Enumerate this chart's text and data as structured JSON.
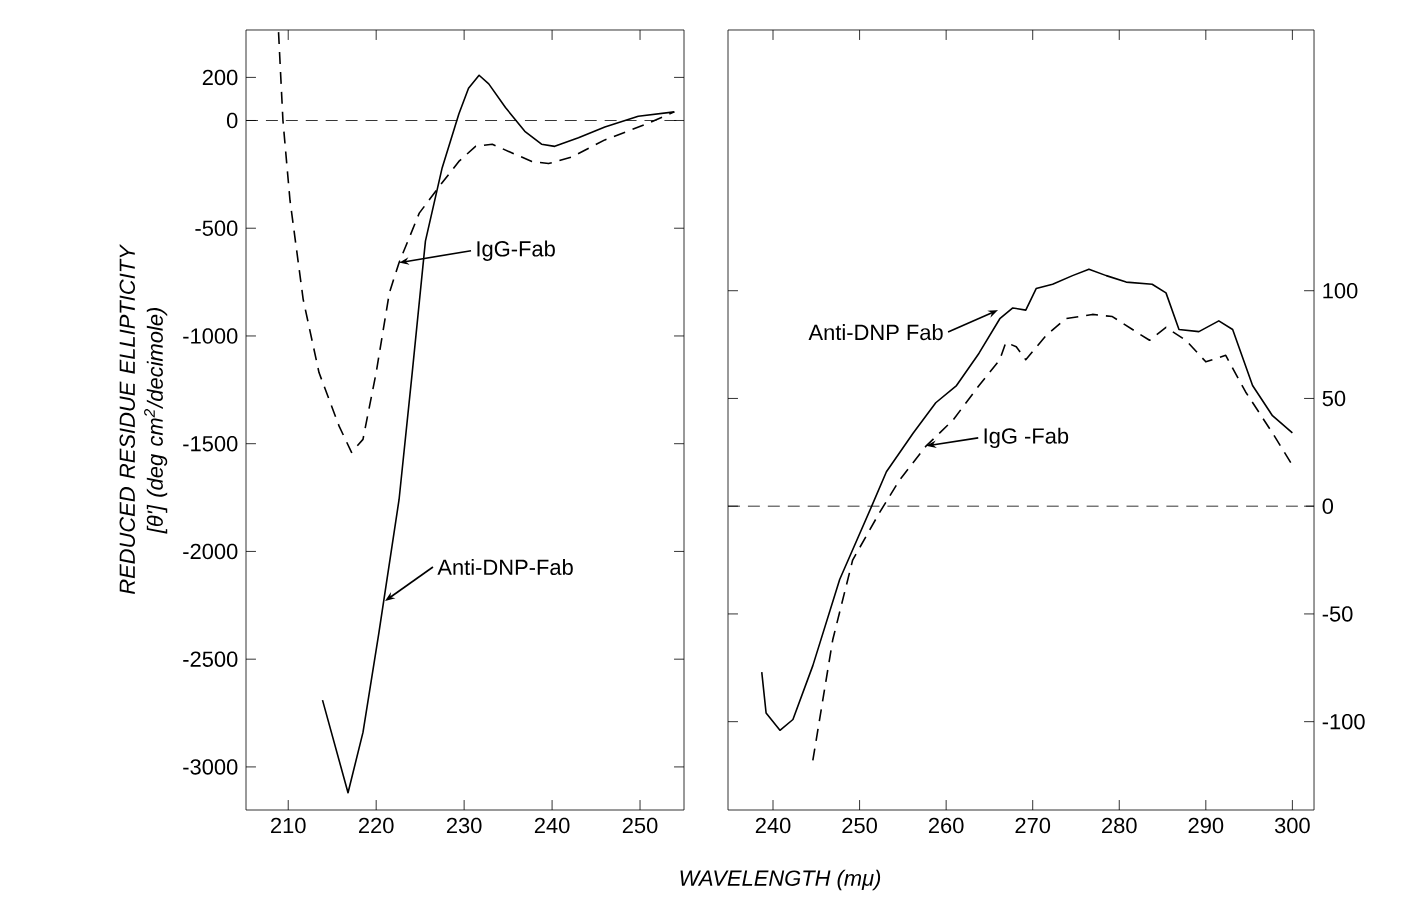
{
  "chart_data": [
    {
      "type": "line",
      "xlabel": "WAVELENGTH (mμ)",
      "ylabel": "REDUCED RESIDUE ELLIPTICITY [θ'] (deg cm$^{2}$/decimole)",
      "xlim": [
        205.2,
        255
      ],
      "ylim": [
        -3200,
        420
      ],
      "xticks": [
        210,
        220,
        230,
        240,
        250
      ],
      "yticks": [
        -3000,
        -2500,
        -2000,
        -1500,
        -1000,
        -500,
        0,
        200
      ],
      "grid": false,
      "marker": "none",
      "ref_lines": [
        {
          "axis": "y",
          "value": 0,
          "line_style": "dashed",
          "color": "#000000"
        }
      ],
      "annotations": [
        {
          "text": "IgG-Fab",
          "x": 222.6,
          "y": -660
        },
        {
          "text": "Anti-DNP-Fab",
          "x": 221,
          "y": -2230
        }
      ],
      "series": [
        {
          "color": "#000000",
          "line_style": "solid",
          "x": [
            213.9,
            216.8,
            218.5,
            220.3,
            222.6,
            224.1,
            225.6,
            227.5,
            229.4,
            230.5,
            231.7,
            232.8,
            234.7,
            236.9,
            238.8,
            240.3,
            243,
            246,
            249.8,
            253.9
          ],
          "values": [
            -2690,
            -3120,
            -2840,
            -2380,
            -1760,
            -1170,
            -560,
            -220,
            30,
            150,
            210,
            170,
            60,
            -50,
            -110,
            -120,
            -80,
            -30,
            20,
            40
          ]
        },
        {
          "color": "#000000",
          "line_style": "dashed",
          "x": [
            208.9,
            209.4,
            210.2,
            211.7,
            213.5,
            215.8,
            217.2,
            218.5,
            220,
            221.5,
            222.6,
            224.9,
            227.1,
            229.4,
            231.3,
            233.2,
            235.4,
            237.7,
            239.6,
            242.2,
            246,
            250.5,
            253.9
          ],
          "values": [
            410,
            0,
            -370,
            -830,
            -1170,
            -1420,
            -1540,
            -1480,
            -1170,
            -800,
            -660,
            -430,
            -310,
            -190,
            -120,
            -110,
            -150,
            -190,
            -200,
            -170,
            -90,
            -20,
            40
          ]
        }
      ]
    },
    {
      "type": "line",
      "xlim": [
        234.8,
        302.5
      ],
      "ylim": [
        -141,
        221
      ],
      "xticks": [
        240,
        250,
        260,
        270,
        280,
        290,
        300
      ],
      "yticks": [
        -100,
        -50,
        0,
        50,
        100
      ],
      "grid": false,
      "marker": "none",
      "ref_lines": [
        {
          "axis": "y",
          "value": 0,
          "line_style": "dashed",
          "color": "#000000"
        }
      ],
      "annotations": [
        {
          "text": "Anti-DNP Fab",
          "x": 266,
          "y": 91
        },
        {
          "text": "IgG -Fab",
          "x": 257.7,
          "y": 28
        }
      ],
      "series": [
        {
          "color": "#000000",
          "line_style": "solid",
          "x": [
            238.7,
            239.2,
            240.8,
            242.3,
            244.6,
            247.7,
            251.4,
            253.1,
            256.2,
            258.8,
            261.2,
            263.8,
            266.2,
            267.7,
            269.2,
            270.4,
            272.3,
            274.6,
            276.5,
            278.5,
            280.8,
            283.8,
            285.4,
            286.9,
            289.2,
            291.5,
            293.1,
            295.4,
            297.7,
            300
          ],
          "values": [
            -77,
            -96,
            -104,
            -99,
            -74,
            -34,
            0,
            16,
            34,
            48,
            56,
            71,
            87,
            92,
            91,
            101,
            103,
            107,
            110,
            107,
            104,
            103,
            99,
            82,
            81,
            86,
            82,
            56,
            42,
            34
          ]
        },
        {
          "color": "#000000",
          "line_style": "dashed",
          "x": [
            244.6,
            246.9,
            249.2,
            252.3,
            254.6,
            257.7,
            260.8,
            263.8,
            266.2,
            266.9,
            268.1,
            269.2,
            271.5,
            273.8,
            276.9,
            279.2,
            282.3,
            283.5,
            285.4,
            287.7,
            290,
            292.3,
            294.6,
            297.7,
            300
          ],
          "values": [
            -118,
            -62,
            -25,
            -3,
            12,
            28,
            40,
            56,
            68,
            76,
            74,
            68,
            79,
            87,
            89,
            88,
            80,
            77,
            83,
            77,
            67,
            70,
            53,
            34,
            19
          ]
        }
      ]
    }
  ]
}
